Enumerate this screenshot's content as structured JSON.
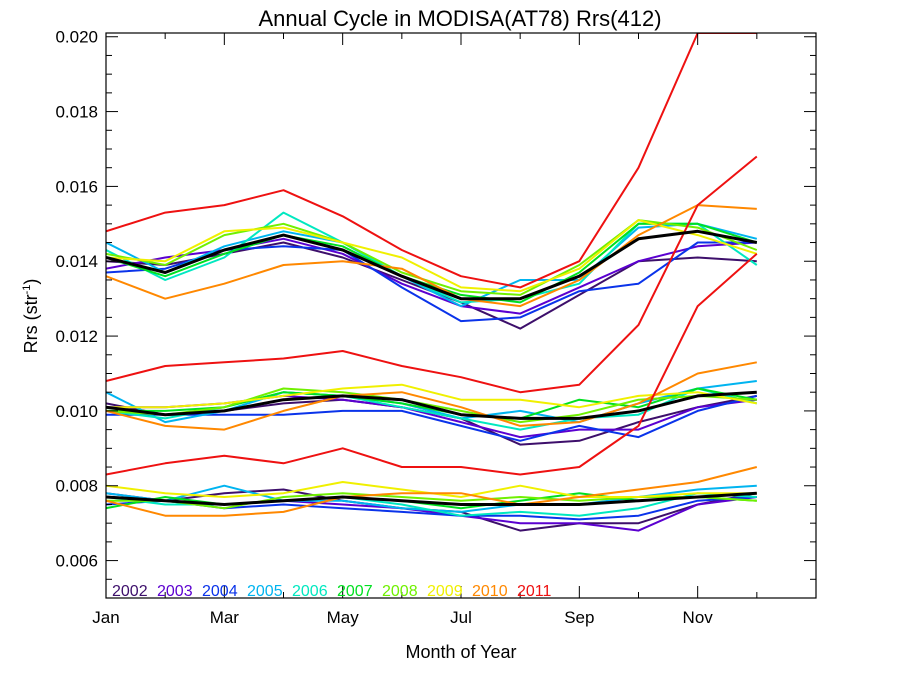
{
  "chart_data": {
    "type": "line",
    "title": "Annual Cycle in MODISA(AT78) Rrs(412)",
    "xlabel": "Month of Year",
    "ylabel": "Rrs (str",
    "ylabel_sup": "-1",
    "ylabel_close": ")",
    "x": [
      1,
      2,
      3,
      4,
      5,
      6,
      7,
      8,
      9,
      10,
      11,
      12
    ],
    "xlim": [
      1,
      13
    ],
    "ylim": [
      0.005,
      0.0201
    ],
    "x_ticks": [
      {
        "x": 1,
        "label": "Jan"
      },
      {
        "x": 3,
        "label": "Mar"
      },
      {
        "x": 5,
        "label": "May"
      },
      {
        "x": 7,
        "label": "Jul"
      },
      {
        "x": 9,
        "label": "Sep"
      },
      {
        "x": 11,
        "label": "Nov"
      }
    ],
    "y_ticks": [
      {
        "y": 0.006,
        "label": "0.006"
      },
      {
        "y": 0.008,
        "label": "0.008"
      },
      {
        "y": 0.01,
        "label": "0.010"
      },
      {
        "y": 0.012,
        "label": "0.012"
      },
      {
        "y": 0.014,
        "label": "0.014"
      },
      {
        "y": 0.016,
        "label": "0.016"
      },
      {
        "y": 0.018,
        "label": "0.018"
      },
      {
        "y": 0.02,
        "label": "0.020"
      }
    ],
    "grid": false,
    "legend_position": "bottom-left",
    "series": [
      {
        "name": "2002",
        "color": "#3d0f6b",
        "band": "low",
        "values": [
          0.0078,
          0.0076,
          0.0078,
          0.0079,
          0.0076,
          0.0074,
          0.0073,
          0.0068,
          0.007,
          0.007,
          0.0075,
          0.0078
        ]
      },
      {
        "name": "2002",
        "color": "#3d0f6b",
        "band": "mid",
        "values": [
          0.0102,
          0.0099,
          0.01,
          0.0102,
          0.0103,
          0.0101,
          0.0098,
          0.0091,
          0.0092,
          0.0097,
          0.0101,
          0.0104
        ]
      },
      {
        "name": "2002",
        "color": "#3d0f6b",
        "band": "high",
        "values": [
          0.014,
          0.0139,
          0.0142,
          0.0145,
          0.0141,
          0.0135,
          0.0129,
          0.0122,
          0.0131,
          0.014,
          0.0141,
          0.014
        ]
      },
      {
        "name": "2003",
        "color": "#5b00d0",
        "band": "low",
        "values": [
          0.0077,
          0.0076,
          0.0075,
          0.0076,
          0.0075,
          0.0074,
          0.0072,
          0.007,
          0.007,
          0.0068,
          0.0075,
          0.0077
        ]
      },
      {
        "name": "2003",
        "color": "#5b00d0",
        "band": "mid",
        "values": [
          0.0101,
          0.0101,
          0.0102,
          0.0104,
          0.0103,
          0.0101,
          0.0097,
          0.0093,
          0.0095,
          0.0095,
          0.0101,
          0.0103
        ]
      },
      {
        "name": "2003",
        "color": "#5b00d0",
        "band": "high",
        "values": [
          0.0138,
          0.0141,
          0.0143,
          0.0146,
          0.0142,
          0.0134,
          0.0128,
          0.0126,
          0.0133,
          0.014,
          0.0144,
          0.0145
        ]
      },
      {
        "name": "2004",
        "color": "#0a33ea",
        "band": "low",
        "values": [
          0.0075,
          0.0076,
          0.0074,
          0.0075,
          0.0074,
          0.0073,
          0.0072,
          0.0072,
          0.0071,
          0.0072,
          0.0076,
          0.0077
        ]
      },
      {
        "name": "2004",
        "color": "#0a33ea",
        "band": "mid",
        "values": [
          0.0099,
          0.0099,
          0.0099,
          0.0099,
          0.01,
          0.01,
          0.0096,
          0.0092,
          0.0096,
          0.0093,
          0.01,
          0.0104
        ]
      },
      {
        "name": "2004",
        "color": "#0a33ea",
        "band": "high",
        "values": [
          0.0137,
          0.0138,
          0.0143,
          0.0144,
          0.0143,
          0.0133,
          0.0124,
          0.0125,
          0.0132,
          0.0134,
          0.0145,
          0.0145
        ]
      },
      {
        "name": "2005",
        "color": "#00b4f0",
        "band": "low",
        "values": [
          0.0078,
          0.0076,
          0.008,
          0.0076,
          0.0076,
          0.0074,
          0.0073,
          0.0075,
          0.0075,
          0.0077,
          0.0079,
          0.008
        ]
      },
      {
        "name": "2005",
        "color": "#00b4f0",
        "band": "mid",
        "values": [
          0.0105,
          0.0097,
          0.01,
          0.0105,
          0.0104,
          0.0102,
          0.0098,
          0.01,
          0.0097,
          0.0102,
          0.0106,
          0.0108
        ]
      },
      {
        "name": "2005",
        "color": "#00b4f0",
        "band": "high",
        "values": [
          0.0145,
          0.0137,
          0.0144,
          0.0148,
          0.0145,
          0.0136,
          0.0128,
          0.0135,
          0.0135,
          0.0149,
          0.015,
          0.0146
        ]
      },
      {
        "name": "2006",
        "color": "#00e8c0",
        "band": "low",
        "values": [
          0.0077,
          0.0075,
          0.0075,
          0.0076,
          0.0077,
          0.0075,
          0.0072,
          0.0073,
          0.0072,
          0.0074,
          0.0078,
          0.0077
        ]
      },
      {
        "name": "2006",
        "color": "#00e8c0",
        "band": "mid",
        "values": [
          0.01,
          0.0098,
          0.0101,
          0.0105,
          0.0104,
          0.0101,
          0.0098,
          0.0095,
          0.0098,
          0.0099,
          0.0106,
          0.0102
        ]
      },
      {
        "name": "2006",
        "color": "#00e8c0",
        "band": "high",
        "values": [
          0.0143,
          0.0135,
          0.0141,
          0.0153,
          0.0145,
          0.0136,
          0.0129,
          0.013,
          0.0134,
          0.015,
          0.015,
          0.0139
        ]
      },
      {
        "name": "2007",
        "color": "#00e020",
        "band": "low",
        "values": [
          0.0074,
          0.0077,
          0.0075,
          0.0076,
          0.0077,
          0.0076,
          0.0074,
          0.0076,
          0.0078,
          0.0076,
          0.0077,
          0.0076
        ]
      },
      {
        "name": "2007",
        "color": "#00e020",
        "band": "mid",
        "values": [
          0.01,
          0.01,
          0.0101,
          0.0105,
          0.0104,
          0.0102,
          0.0099,
          0.0098,
          0.0103,
          0.0101,
          0.0106,
          0.0103
        ]
      },
      {
        "name": "2007",
        "color": "#00e020",
        "band": "high",
        "values": [
          0.0141,
          0.0136,
          0.0142,
          0.0147,
          0.0144,
          0.0136,
          0.0131,
          0.0129,
          0.0137,
          0.015,
          0.015,
          0.0145
        ]
      },
      {
        "name": "2008",
        "color": "#70f000",
        "band": "low",
        "values": [
          0.0076,
          0.0076,
          0.0074,
          0.0077,
          0.0078,
          0.0077,
          0.0076,
          0.0077,
          0.0076,
          0.0077,
          0.0077,
          0.0076
        ]
      },
      {
        "name": "2008",
        "color": "#70f000",
        "band": "mid",
        "values": [
          0.01,
          0.0099,
          0.0101,
          0.0106,
          0.0105,
          0.0103,
          0.01,
          0.0097,
          0.0099,
          0.0103,
          0.0104,
          0.0103
        ]
      },
      {
        "name": "2008",
        "color": "#70f000",
        "band": "high",
        "values": [
          0.0142,
          0.0139,
          0.0147,
          0.015,
          0.0145,
          0.0137,
          0.0132,
          0.0131,
          0.0139,
          0.0151,
          0.0149,
          0.0143
        ]
      },
      {
        "name": "2009",
        "color": "#f0f000",
        "band": "low",
        "values": [
          0.008,
          0.0078,
          0.0077,
          0.0078,
          0.0081,
          0.0079,
          0.0077,
          0.008,
          0.0077,
          0.0077,
          0.0078,
          0.0078
        ]
      },
      {
        "name": "2009",
        "color": "#f0f000",
        "band": "mid",
        "values": [
          0.0101,
          0.0101,
          0.0102,
          0.0104,
          0.0106,
          0.0107,
          0.0103,
          0.0103,
          0.0101,
          0.0104,
          0.0105,
          0.0102
        ]
      },
      {
        "name": "2009",
        "color": "#f0f000",
        "band": "high",
        "values": [
          0.0141,
          0.014,
          0.0148,
          0.0149,
          0.0145,
          0.0141,
          0.0133,
          0.0132,
          0.0138,
          0.0151,
          0.0147,
          0.0142
        ]
      },
      {
        "name": "2010",
        "color": "#ff8800",
        "band": "low",
        "values": [
          0.0076,
          0.0072,
          0.0072,
          0.0073,
          0.0077,
          0.0078,
          0.0078,
          0.0075,
          0.0077,
          0.0079,
          0.0081,
          0.0085
        ]
      },
      {
        "name": "2010",
        "color": "#ff8800",
        "band": "mid",
        "values": [
          0.01,
          0.0096,
          0.0095,
          0.01,
          0.0104,
          0.0105,
          0.0101,
          0.0096,
          0.0097,
          0.0102,
          0.011,
          0.0113
        ]
      },
      {
        "name": "2010",
        "color": "#ff8800",
        "band": "high",
        "values": [
          0.0136,
          0.013,
          0.0134,
          0.0139,
          0.014,
          0.0138,
          0.013,
          0.0128,
          0.0135,
          0.0147,
          0.0155,
          0.0154
        ]
      },
      {
        "name": "2011",
        "color": "#ee1111",
        "band": "low",
        "values": [
          0.0083,
          0.0086,
          0.0088,
          0.0086,
          0.009,
          0.0085,
          0.0085,
          0.0083,
          0.0085,
          0.0096,
          0.0128,
          0.0142
        ]
      },
      {
        "name": "2011",
        "color": "#ee1111",
        "band": "mid",
        "values": [
          0.0108,
          0.0112,
          0.0113,
          0.0114,
          0.0116,
          0.0112,
          0.0109,
          0.0105,
          0.0107,
          0.0123,
          0.0155,
          0.0168
        ]
      },
      {
        "name": "2011",
        "color": "#ee1111",
        "band": "high",
        "values": [
          0.0148,
          0.0153,
          0.0155,
          0.0159,
          0.0152,
          0.0143,
          0.0136,
          0.0133,
          0.014,
          0.0165,
          0.0201,
          0.0201
        ]
      },
      {
        "name": "",
        "color": "#000000",
        "band": "low",
        "mean": true,
        "values": [
          0.0077,
          0.0076,
          0.0075,
          0.0076,
          0.0077,
          0.0076,
          0.0075,
          0.0075,
          0.0075,
          0.0076,
          0.0077,
          0.0078
        ]
      },
      {
        "name": "",
        "color": "#000000",
        "band": "mid",
        "mean": true,
        "values": [
          0.0101,
          0.0099,
          0.01,
          0.0103,
          0.0104,
          0.0103,
          0.0099,
          0.0098,
          0.0098,
          0.01,
          0.0104,
          0.0105
        ]
      },
      {
        "name": "",
        "color": "#000000",
        "band": "high",
        "mean": true,
        "values": [
          0.0141,
          0.0137,
          0.0143,
          0.0147,
          0.0143,
          0.0136,
          0.013,
          0.013,
          0.0136,
          0.0146,
          0.0148,
          0.0145
        ]
      }
    ],
    "legend": [
      {
        "label": "2002",
        "color": "#3d0f6b"
      },
      {
        "label": "2003",
        "color": "#5b00d0"
      },
      {
        "label": "2004",
        "color": "#0a33ea"
      },
      {
        "label": "2005",
        "color": "#00b4f0"
      },
      {
        "label": "2006",
        "color": "#00e8c0"
      },
      {
        "label": "2007",
        "color": "#00e020"
      },
      {
        "label": "2008",
        "color": "#70f000"
      },
      {
        "label": "2009",
        "color": "#f0f000"
      },
      {
        "label": "2010",
        "color": "#ff8800"
      },
      {
        "label": "2011",
        "color": "#ee1111"
      }
    ]
  }
}
